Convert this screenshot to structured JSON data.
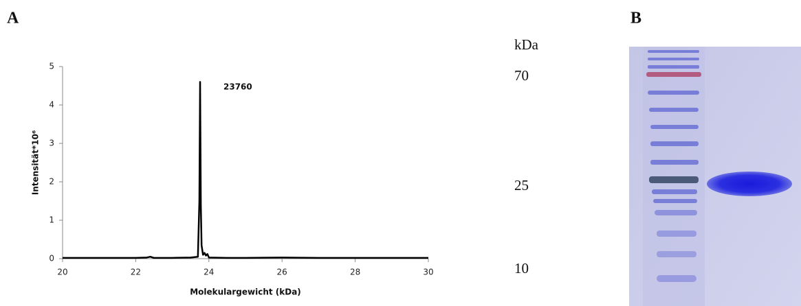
{
  "panels": [
    "A",
    "B"
  ],
  "chart_data": {
    "type": "line",
    "x": [
      20,
      21,
      22,
      22.3,
      22.4,
      22.5,
      23,
      23.5,
      23.7,
      23.74,
      23.76,
      23.78,
      23.8,
      23.84,
      23.88,
      23.92,
      23.96,
      24,
      24.5,
      25,
      26,
      27,
      28,
      29,
      30
    ],
    "series": [
      {
        "color": "#000000",
        "values": [
          0.02,
          0.02,
          0.02,
          0.03,
          0.05,
          0.02,
          0.02,
          0.03,
          0.05,
          1.5,
          4.6,
          1.4,
          0.35,
          0.1,
          0.15,
          0.08,
          0.12,
          0.03,
          0.02,
          0.02,
          0.03,
          0.02,
          0.02,
          0.02,
          0.02
        ]
      }
    ],
    "annotation": "23760",
    "xlabel": "Molekulargewicht (kDa)",
    "ylabel": "Intensität*10⁶",
    "xlim": [
      20,
      30
    ],
    "xticks": [
      20,
      22,
      24,
      26,
      28,
      30
    ],
    "ylim": [
      0,
      5
    ],
    "yticks": [
      0,
      1,
      2,
      3,
      4,
      5
    ],
    "grid": false
  },
  "gel": {
    "unit_label": "kDa",
    "markers": [
      "70",
      "25",
      "10"
    ]
  }
}
